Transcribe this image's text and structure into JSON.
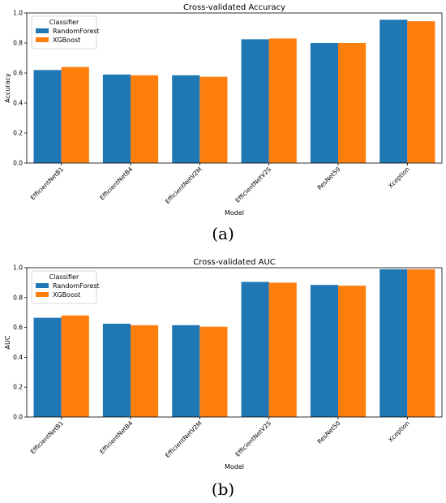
{
  "figure_labels": [
    "(a)",
    "(b)"
  ],
  "colors": {
    "rf": "#1f77b4",
    "xgb": "#ff7f0e"
  },
  "chart_data": [
    {
      "type": "bar",
      "title": "Cross-validated Accuracy",
      "xlabel": "Model",
      "ylabel": "Accuracy",
      "ylim": [
        0,
        1.0
      ],
      "yticks": [
        "0.0",
        "0.2",
        "0.4",
        "0.6",
        "0.8",
        "1.0"
      ],
      "categories": [
        "EfficientNetB1",
        "EfficientNetB4",
        "EfficientNetV2M",
        "EfficientNetV2S",
        "ResNet50",
        "Xception"
      ],
      "legend_title": "Classifier",
      "legend_position": "top-left",
      "series": [
        {
          "name": "RandomForest",
          "values": [
            0.62,
            0.59,
            0.585,
            0.825,
            0.8,
            0.955
          ]
        },
        {
          "name": "XGBoost",
          "values": [
            0.64,
            0.585,
            0.575,
            0.83,
            0.8,
            0.945
          ]
        }
      ]
    },
    {
      "type": "bar",
      "title": "Cross-validated AUC",
      "xlabel": "Model",
      "ylabel": "AUC",
      "ylim": [
        0,
        1.0
      ],
      "yticks": [
        "0.0",
        "0.2",
        "0.4",
        "0.6",
        "0.8",
        "1.0"
      ],
      "categories": [
        "EfficientNetB1",
        "EfficientNetB4",
        "EfficientNetV2M",
        "EfficientNetV2S",
        "ResNet50",
        "Xception"
      ],
      "legend_title": "Classifier",
      "legend_position": "top-left",
      "series": [
        {
          "name": "RandomForest",
          "values": [
            0.665,
            0.625,
            0.615,
            0.905,
            0.885,
            0.99
          ]
        },
        {
          "name": "XGBoost",
          "values": [
            0.68,
            0.615,
            0.605,
            0.9,
            0.88,
            0.99
          ]
        }
      ]
    }
  ]
}
